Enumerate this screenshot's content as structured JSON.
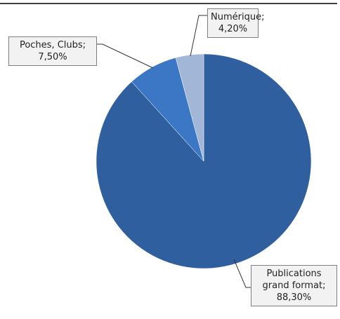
{
  "chart_data": {
    "type": "pie",
    "categories": [
      "Publications grand format;",
      "Poches, Clubs;",
      "Numérique;"
    ],
    "values": [
      88.3,
      7.5,
      4.2
    ],
    "value_labels": [
      "88,30%",
      "7,50%",
      "4,20%"
    ],
    "colors": [
      "#2f5f9e",
      "#3b77c5",
      "#a2b6d8"
    ]
  }
}
